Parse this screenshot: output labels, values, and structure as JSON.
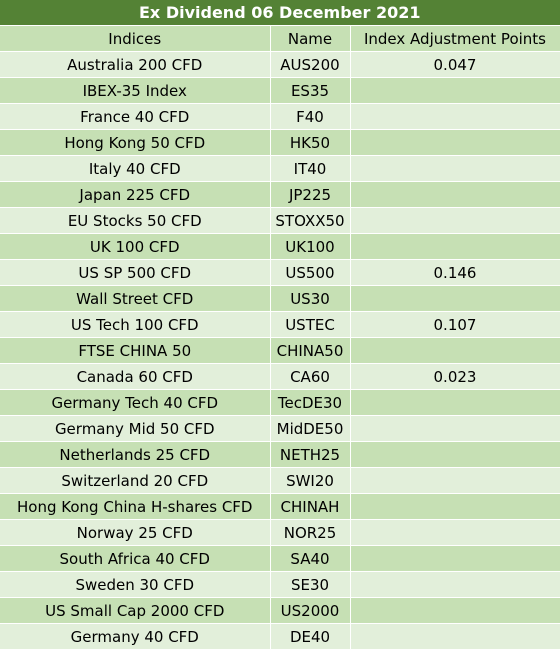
{
  "title": "Ex Dividend 06 December 2021",
  "headers": [
    "Indices",
    "Name",
    "Index Adjustment Points"
  ],
  "rows": [
    [
      "Australia 200 CFD",
      "AUS200",
      "0.047"
    ],
    [
      "IBEX-35 Index",
      "ES35",
      ""
    ],
    [
      "France 40 CFD",
      "F40",
      ""
    ],
    [
      "Hong Kong 50 CFD",
      "HK50",
      ""
    ],
    [
      "Italy 40 CFD",
      "IT40",
      ""
    ],
    [
      "Japan 225 CFD",
      "JP225",
      ""
    ],
    [
      "EU Stocks 50 CFD",
      "STOXX50",
      ""
    ],
    [
      "UK 100 CFD",
      "UK100",
      ""
    ],
    [
      "US SP 500 CFD",
      "US500",
      "0.146"
    ],
    [
      "Wall Street CFD",
      "US30",
      ""
    ],
    [
      "US Tech 100 CFD",
      "USTEC",
      "0.107"
    ],
    [
      "FTSE CHINA 50",
      "CHINA50",
      ""
    ],
    [
      "Canada 60 CFD",
      "CA60",
      "0.023"
    ],
    [
      "Germany Tech 40 CFD",
      "TecDE30",
      ""
    ],
    [
      "Germany Mid 50 CFD",
      "MidDE50",
      ""
    ],
    [
      "Netherlands 25 CFD",
      "NETH25",
      ""
    ],
    [
      "Switzerland 20 CFD",
      "SWI20",
      ""
    ],
    [
      "Hong Kong China H-shares CFD",
      "CHINAH",
      ""
    ],
    [
      "Norway 25 CFD",
      "NOR25",
      ""
    ],
    [
      "South Africa 40 CFD",
      "SA40",
      ""
    ],
    [
      "Sweden 30 CFD",
      "SE30",
      ""
    ],
    [
      "US Small Cap 2000 CFD",
      "US2000",
      ""
    ],
    [
      "Germany 40 CFD",
      "DE40",
      ""
    ]
  ],
  "colors": {
    "title_bg": "#548235",
    "band_light": "#e2efda",
    "band_dark": "#c6e0b4"
  }
}
